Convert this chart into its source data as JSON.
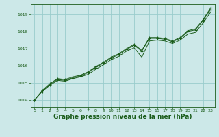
{
  "background_color": "#cce8e8",
  "grid_color": "#99cccc",
  "line_color": "#1a5c1a",
  "xlabel": "Graphe pression niveau de la mer (hPa)",
  "xlabel_fontsize": 6.5,
  "xlim": [
    -0.5,
    23.5
  ],
  "ylim": [
    1013.6,
    1019.6
  ],
  "yticks": [
    1014,
    1015,
    1016,
    1017,
    1018,
    1019
  ],
  "xticks": [
    0,
    1,
    2,
    3,
    4,
    5,
    6,
    7,
    8,
    9,
    10,
    11,
    12,
    13,
    14,
    15,
    16,
    17,
    18,
    19,
    20,
    21,
    22,
    23
  ],
  "s1": [
    1014.0,
    1014.5,
    1014.85,
    1015.15,
    1015.1,
    1015.25,
    1015.35,
    1015.5,
    1015.8,
    1016.05,
    1016.35,
    1016.55,
    1016.85,
    1017.05,
    1016.5,
    1017.45,
    1017.5,
    1017.45,
    1017.3,
    1017.5,
    1017.85,
    1017.95,
    1018.5,
    1019.15
  ],
  "s2": [
    1014.0,
    1014.5,
    1014.9,
    1015.2,
    1015.15,
    1015.3,
    1015.4,
    1015.6,
    1015.9,
    1016.15,
    1016.45,
    1016.65,
    1016.95,
    1017.2,
    1016.85,
    1017.6,
    1017.6,
    1017.55,
    1017.4,
    1017.6,
    1018.0,
    1018.1,
    1018.65,
    1019.3
  ],
  "s3": [
    1014.0,
    1014.55,
    1014.95,
    1015.25,
    1015.2,
    1015.35,
    1015.45,
    1015.65,
    1015.95,
    1016.2,
    1016.5,
    1016.7,
    1017.0,
    1017.25,
    1016.9,
    1017.65,
    1017.65,
    1017.6,
    1017.45,
    1017.65,
    1018.05,
    1018.15,
    1018.7,
    1019.4
  ]
}
